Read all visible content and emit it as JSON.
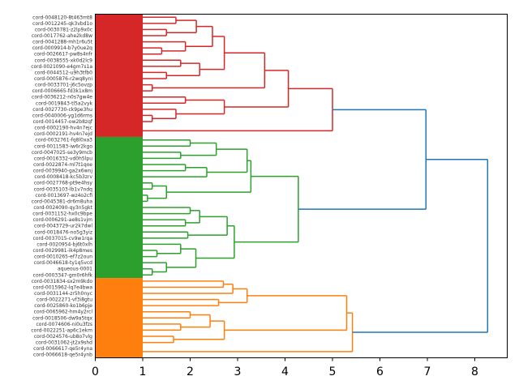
{
  "chart_data": {
    "type": "dendrogram",
    "orientation": "left",
    "title": "",
    "xlabel": "",
    "ylabel": "",
    "xlim": [
      0,
      8.7
    ],
    "xticks": [
      0,
      1,
      2,
      3,
      4,
      5,
      6,
      7,
      8
    ],
    "above_threshold_color": "#1f77b4",
    "cluster_colors": {
      "red": "#d62728",
      "green": "#2ca02c",
      "orange": "#ff7f0e"
    },
    "tree": {
      "h": 8.27,
      "color": "#1f77b4",
      "c": [
        {
          "h": 6.97,
          "color": "#1f77b4",
          "c": [
            {
              "h": 5.0,
              "color": "#d62728",
              "c": [
                {
                  "h": 4.07,
                  "c": [
                    {
                      "h": 3.57,
                      "c": [
                        {
                          "h": 2.72,
                          "c": [
                            {
                              "h": 2.47,
                              "c": [
                                {
                                  "h": 2.13,
                                  "c": [
                                    {
                                      "h": 1.7,
                                      "c": [
                                        "cord-0048120-8t463mt8",
                                        "cord-0012245-qk3vbd1o"
                                      ]
                                    },
                                    {
                                      "h": 1.5,
                                      "c": [
                                        "cord-0030781-z2lp9x0c",
                                        "cord-0017762-ahe2kd8w"
                                      ]
                                    }
                                  ]
                                },
                                {
                                  "h": 1.9,
                                  "c": [
                                    "cord-0041288-mh1r6u5t",
                                    {
                                      "h": 1.4,
                                      "c": [
                                        "cord-0009914-b7y0ue2q",
                                        "cord-0026617-pw8s4nfr"
                                      ]
                                    }
                                  ]
                                }
                              ]
                            },
                            {
                              "h": 2.2,
                              "c": [
                                {
                                  "h": 1.8,
                                  "c": [
                                    "cord-0038555-xk0d2lc9",
                                    "cord-0021090-e4gm7s1a"
                                  ]
                                },
                                {
                                  "h": 1.5,
                                  "c": [
                                    "cord-0044512-u9h3tfb0",
                                    "cord-0005876-r2wq8yni"
                                  ]
                                }
                              ]
                            }
                          ]
                        },
                        {
                          "h": 1.2,
                          "c": [
                            "cord-0033701-j6c5ovzp",
                            "cord-0006665-fd3k1x8m"
                          ]
                        }
                      ]
                    },
                    {
                      "h": 2.72,
                      "c": [
                        {
                          "h": 1.9,
                          "c": [
                            "cord-0036212-n0s7gw4e",
                            "cord-0019843-tl5a2vyk"
                          ]
                        },
                        {
                          "h": 1.7,
                          "c": [
                            "cord-0027730-ck9pe3hu",
                            {
                              "h": 1.2,
                              "c": [
                                "cord-0040006-yg1d6rms",
                                "cord-0014457-ow2b8zqf"
                              ]
                            }
                          ]
                        }
                      ]
                    }
                  ]
                },
                {
                  "h": 0.1,
                  "c": [
                    "cord-0002190-hv4n7ejc",
                    "cord-0002191-hv4n7ejd"
                  ]
                }
              ]
            },
            {
              "h": 4.28,
              "color": "#2ca02c",
              "c": [
                {
                  "h": 3.28,
                  "c": [
                    {
                      "h": 3.2,
                      "c": [
                        {
                          "h": 2.55,
                          "c": [
                            {
                              "h": 2.0,
                              "c": [
                                "cord-0032761-fq8l0xa3",
                                "cord-0011583-iw6r2kgo"
                              ]
                            },
                            {
                              "h": 1.8,
                              "c": [
                                "cord-0047025-se3y9mcb",
                                "cord-0016332-vd0h5lpu"
                              ]
                            }
                          ]
                        },
                        {
                          "h": 2.35,
                          "c": [
                            {
                              "h": 1.9,
                              "c": [
                                "cord-0022874-ml7t1qoe",
                                "cord-0039940-ga2x6wnj"
                              ]
                            },
                            "cord-0008418-kc5b3zrv"
                          ]
                        }
                      ]
                    },
                    {
                      "h": 1.5,
                      "c": [
                        {
                          "h": 1.2,
                          "c": [
                            "cord-0027768-pt9e4hsy",
                            "cord-0035103-lb1v7ndq"
                          ]
                        },
                        {
                          "h": 1.1,
                          "c": [
                            "cord-0013697-wz4o2cfi",
                            "cord-0045381-dr6m8uha"
                          ]
                        }
                      ]
                    }
                  ]
                },
                {
                  "h": 2.93,
                  "c": [
                    {
                      "h": 2.78,
                      "c": [
                        {
                          "h": 2.2,
                          "c": [
                            {
                              "h": 2.0,
                              "c": [
                                "cord-0024090-qy3n5gkt",
                                "cord-0031152-hx0c9bpe"
                              ]
                            },
                            {
                              "h": 1.9,
                              "c": [
                                "cord-0006291-ae8s1vjm",
                                "cord-0043729-ur2k7dwl"
                              ]
                            }
                          ]
                        },
                        {
                          "h": 1.95,
                          "c": [
                            "cord-0018476-no5g3yiz",
                            "cord-0037015-cv9w1rqa"
                          ]
                        }
                      ]
                    },
                    {
                      "h": 2.12,
                      "c": [
                        {
                          "h": 1.8,
                          "c": [
                            "cord-0020954-bj6t0xlh",
                            {
                              "h": 1.3,
                              "c": [
                                "cord-0029981-ik4p8mes",
                                "cord-0010265-ef7z2oun"
                              ]
                            }
                          ]
                        },
                        {
                          "h": 1.5,
                          "c": [
                            "cord-0046618-ty1q5vcd",
                            {
                              "h": 1.2,
                              "c": [
                                "aqueous-0001",
                                "cord-0003347-gm0r6hfk"
                              ]
                            }
                          ]
                        }
                      ]
                    }
                  ]
                }
              ]
            }
          ]
        },
        {
          "h": 5.42,
          "color": "#ff7f0e",
          "c": [
            {
              "h": 5.3,
              "c": [
                {
                  "h": 3.2,
                  "c": [
                    {
                      "h": 2.9,
                      "c": [
                        {
                          "h": 2.7,
                          "c": [
                            "cord-0031834-sx2m9kdo",
                            "cord-0015962-lq7e4bwa"
                          ]
                        },
                        "cord-0031144-zr5h0nyc"
                      ]
                    },
                    {
                      "h": 2.6,
                      "c": [
                        "cord-0022271-vf3i8gtu",
                        "cord-0025860-ko1b6pje"
                      ]
                    }
                  ]
                },
                {
                  "h": 2.72,
                  "c": [
                    {
                      "h": 2.42,
                      "c": [
                        {
                          "h": 2.0,
                          "c": [
                            "cord-0065962-hm4y2rcl",
                            "cord-0018506-dw9a5tqx"
                          ]
                        },
                        {
                          "h": 1.8,
                          "c": [
                            "cord-0074606-ni0u3fzs",
                            "cord-0022251-ap6c1ekm"
                          ]
                        }
                      ]
                    },
                    {
                      "h": 1.65,
                      "c": [
                        "cord-0024576-ub8o7vlg",
                        "cord-0031062-jt2x9shd"
                      ]
                    }
                  ]
                }
              ]
            },
            {
              "h": 0.55,
              "c": [
                "cord-0066617-qe5r4yna",
                "cord-0066618-qe5r4ynb"
              ]
            }
          ]
        }
      ]
    }
  }
}
